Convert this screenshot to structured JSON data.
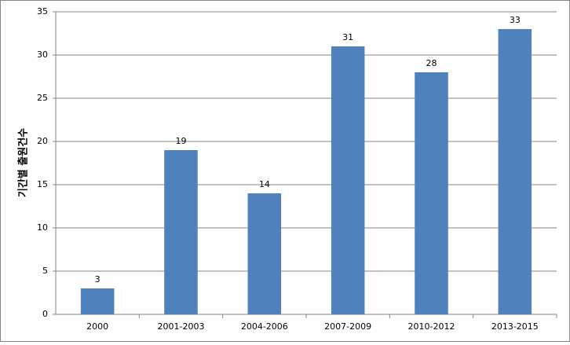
{
  "chart_data": {
    "type": "bar",
    "y_label": "기간별 출원건수",
    "categories": [
      "2000",
      "2001-2003",
      "2004-2006",
      "2007-2009",
      "2010-2012",
      "2013-2015"
    ],
    "values": [
      3,
      19,
      14,
      31,
      28,
      33
    ],
    "color": "#4f81bd",
    "ylim": [
      0,
      35
    ],
    "yticks": [
      0,
      5,
      10,
      15,
      20,
      25,
      30,
      35
    ],
    "grid": true
  }
}
